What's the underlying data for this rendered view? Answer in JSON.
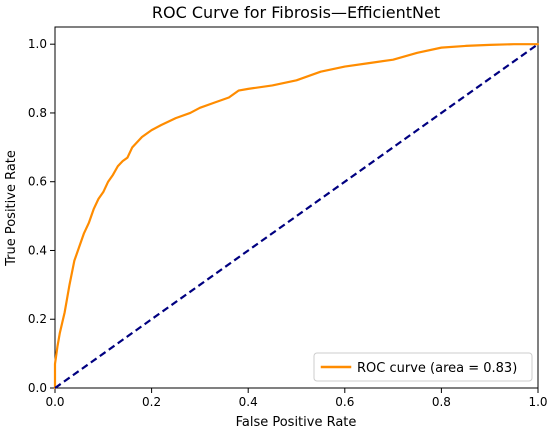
{
  "chart_data": {
    "type": "line",
    "title": "ROC Curve for Fibrosis—EfficientNet",
    "xlabel": "False Positive Rate",
    "ylabel": "True Positive Rate",
    "xlim": [
      0.0,
      1.0
    ],
    "ylim": [
      0.0,
      1.05
    ],
    "xticks": [
      0.0,
      0.2,
      0.4,
      0.6,
      0.8,
      1.0
    ],
    "yticks": [
      0.0,
      0.2,
      0.4,
      0.6,
      0.8,
      1.0
    ],
    "xtick_labels": [
      "0.0",
      "0.2",
      "0.4",
      "0.6",
      "0.8",
      "1.0"
    ],
    "ytick_labels": [
      "0.0",
      "0.2",
      "0.4",
      "0.6",
      "0.8",
      "1.0"
    ],
    "grid": false,
    "legend_position": "lower-right",
    "series": [
      {
        "name": "ROC curve (area = 0.83)",
        "color": "#ff8c00",
        "line_style": "solid",
        "x": [
          0.0,
          0.0,
          0.005,
          0.01,
          0.015,
          0.02,
          0.025,
          0.03,
          0.04,
          0.05,
          0.06,
          0.07,
          0.08,
          0.09,
          0.1,
          0.11,
          0.12,
          0.13,
          0.14,
          0.15,
          0.16,
          0.18,
          0.2,
          0.22,
          0.25,
          0.28,
          0.3,
          0.33,
          0.36,
          0.38,
          0.4,
          0.45,
          0.5,
          0.55,
          0.6,
          0.65,
          0.7,
          0.75,
          0.8,
          0.85,
          0.9,
          0.95,
          1.0
        ],
        "y": [
          0.0,
          0.07,
          0.12,
          0.16,
          0.19,
          0.22,
          0.26,
          0.3,
          0.37,
          0.41,
          0.45,
          0.48,
          0.52,
          0.55,
          0.57,
          0.6,
          0.62,
          0.645,
          0.66,
          0.67,
          0.7,
          0.73,
          0.75,
          0.765,
          0.785,
          0.8,
          0.815,
          0.83,
          0.845,
          0.865,
          0.87,
          0.88,
          0.895,
          0.92,
          0.935,
          0.945,
          0.955,
          0.975,
          0.99,
          0.995,
          0.998,
          1.0,
          1.0
        ]
      },
      {
        "name": "",
        "color": "#000080",
        "line_style": "dashed",
        "x": [
          0.0,
          1.0
        ],
        "y": [
          0.0,
          1.0
        ]
      }
    ],
    "legend_entries": [
      "ROC curve (area = 0.83)"
    ]
  }
}
